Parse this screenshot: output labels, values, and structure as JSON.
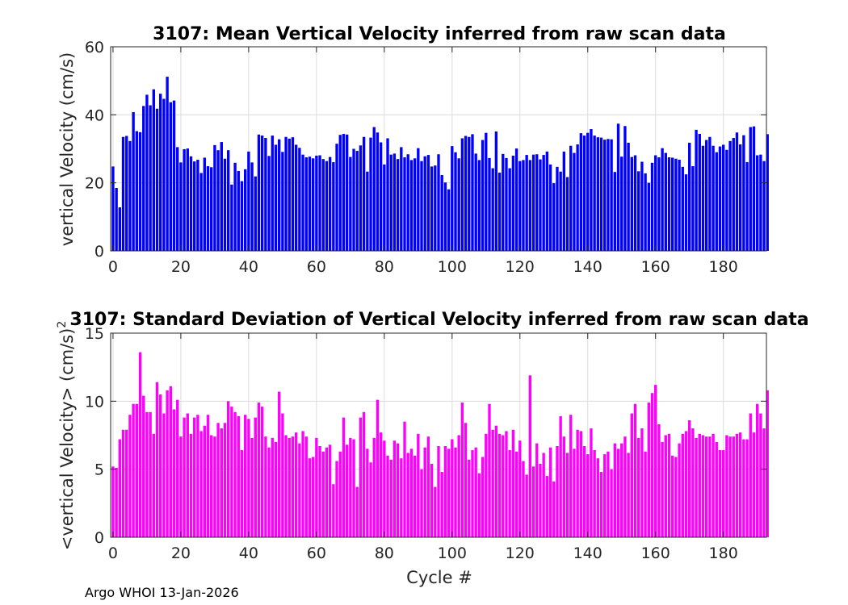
{
  "footer": "Argo WHOI 13-Jan-2026",
  "chart_data": [
    {
      "type": "bar",
      "title": "3107: Mean Vertical Velocity inferred from raw scan data",
      "xlabel": "",
      "ylabel": "vertical Velocity (cm/s)",
      "color": "#0000ff",
      "xlim": [
        -0.7,
        192.7
      ],
      "ylim": [
        0,
        60
      ],
      "xticks": [
        0,
        20,
        40,
        60,
        80,
        100,
        120,
        140,
        160,
        180
      ],
      "yticks": [
        0,
        20,
        40,
        60
      ],
      "grid": true,
      "x_start": 0,
      "values": [
        24.8,
        18.5,
        12.8,
        33.5,
        33.8,
        32.3,
        40.8,
        35.2,
        34.9,
        42.6,
        45.9,
        42.8,
        47.5,
        41.8,
        46.2,
        44.7,
        51.2,
        43.7,
        44.2,
        30.5,
        26.0,
        29.9,
        30.1,
        27.8,
        26.3,
        26.8,
        22.9,
        27.4,
        24.9,
        24.6,
        31.1,
        29.6,
        32.0,
        27.1,
        29.6,
        19.5,
        25.9,
        23.5,
        20.5,
        24.0,
        29.2,
        26.0,
        21.9,
        34.2,
        33.9,
        33.2,
        27.9,
        33.9,
        31.2,
        32.8,
        29.1,
        33.5,
        33.0,
        33.4,
        31.2,
        30.3,
        28.3,
        27.5,
        27.7,
        27.2,
        28.0,
        28.1,
        27.0,
        26.4,
        27.6,
        26.1,
        31.5,
        34.1,
        34.4,
        34.2,
        27.6,
        30.0,
        29.4,
        31.0,
        33.5,
        23.3,
        33.3,
        36.4,
        34.8,
        31.9,
        25.4,
        33.1,
        28.3,
        28.6,
        27.0,
        30.5,
        27.5,
        28.4,
        26.7,
        27.2,
        30.2,
        26.4,
        27.8,
        28.2,
        24.8,
        25.1,
        28.4,
        22.3,
        20.1,
        18.1,
        30.8,
        29.0,
        27.2,
        33.1,
        33.8,
        33.5,
        34.3,
        28.6,
        26.7,
        32.6,
        34.7,
        27.3,
        24.3,
        35.1,
        23.0,
        28.5,
        27.3,
        24.3,
        28.0,
        30.1,
        26.4,
        26.7,
        28.2,
        26.7,
        28.3,
        28.4,
        26.9,
        28.2,
        29.2,
        25.4,
        19.9,
        24.7,
        23.3,
        29.2,
        21.7,
        30.9,
        28.8,
        31.3,
        34.6,
        33.9,
        34.7,
        35.8,
        33.9,
        33.4,
        33.3,
        32.7,
        32.9,
        32.8,
        23.2,
        37.4,
        27.7,
        36.7,
        31.8,
        27.6,
        28.1,
        23.4,
        26.2,
        22.8,
        20.0,
        25.9,
        28.1,
        27.5,
        30.2,
        28.8,
        27.5,
        27.4,
        27.1,
        26.8,
        24.7,
        22.5,
        31.8,
        24.9,
        35.6,
        34.4,
        30.9,
        32.6,
        33.5,
        30.9,
        29.0,
        30.7,
        31.2,
        29.7,
        32.3,
        33.2,
        34.8,
        31.3,
        34.0,
        26.1,
        36.4,
        36.6,
        28.1,
        28.3,
        26.4,
        34.3
      ]
    },
    {
      "type": "bar",
      "title": "3107: Standard Deviation of Vertical Velocity inferred from raw scan data",
      "xlabel": "Cycle #",
      "ylabel": "<vertical Velocity> (cm/s)",
      "ylabel_superscript": "2",
      "color": "#ff00ff",
      "xlim": [
        -0.7,
        192.7
      ],
      "ylim": [
        0,
        15
      ],
      "xticks": [
        0,
        20,
        40,
        60,
        80,
        100,
        120,
        140,
        160,
        180
      ],
      "yticks": [
        0,
        5,
        10,
        15
      ],
      "grid": true,
      "x_start": 0,
      "values": [
        5.2,
        5.1,
        7.2,
        7.9,
        7.9,
        9.0,
        9.8,
        9.8,
        13.6,
        10.4,
        9.2,
        9.2,
        7.6,
        11.4,
        10.5,
        9.1,
        10.8,
        11.1,
        9.4,
        10.1,
        7.4,
        8.8,
        9.1,
        7.6,
        8.8,
        9.0,
        7.8,
        8.2,
        9.0,
        7.5,
        7.4,
        8.4,
        8.0,
        8.4,
        10.0,
        9.6,
        9.2,
        8.9,
        6.4,
        9.0,
        8.7,
        7.3,
        8.8,
        9.9,
        9.6,
        7.4,
        6.6,
        7.3,
        7.0,
        10.7,
        9.1,
        7.5,
        7.3,
        7.4,
        7.7,
        6.9,
        7.8,
        7.4,
        5.8,
        5.9,
        7.3,
        6.7,
        6.3,
        6.6,
        6.8,
        3.9,
        5.6,
        6.3,
        8.8,
        6.8,
        7.3,
        7.2,
        3.7,
        8.8,
        9.2,
        6.5,
        5.5,
        7.3,
        10.1,
        7.7,
        7.1,
        6.0,
        5.7,
        7.1,
        6.9,
        5.8,
        8.5,
        6.2,
        6.5,
        6.0,
        7.6,
        5.0,
        6.6,
        7.4,
        5.4,
        3.7,
        6.7,
        4.8,
        6.7,
        6.5,
        7.2,
        6.6,
        7.5,
        9.9,
        8.4,
        5.7,
        6.4,
        6.6,
        4.7,
        5.9,
        7.6,
        9.8,
        7.9,
        8.2,
        7.6,
        7.5,
        7.8,
        6.4,
        7.9,
        6.3,
        7.1,
        5.6,
        4.6,
        11.9,
        5.2,
        6.9,
        5.4,
        6.2,
        4.5,
        6.6,
        4.1,
        6.7,
        8.9,
        7.4,
        6.2,
        9.0,
        6.5,
        7.9,
        7.8,
        6.7,
        6.1,
        8.0,
        6.4,
        5.8,
        4.8,
        6.1,
        6.3,
        5.0,
        6.9,
        6.5,
        6.9,
        7.4,
        6.2,
        9.1,
        9.8,
        7.3,
        8.0,
        6.3,
        9.9,
        10.6,
        11.2,
        8.3,
        7.0,
        7.5,
        7.6,
        6.0,
        5.9,
        6.9,
        7.6,
        7.8,
        8.6,
        8.0,
        7.3,
        7.6,
        7.5,
        7.4,
        7.4,
        7.6,
        7.0,
        6.4,
        6.4,
        7.5,
        7.4,
        7.4,
        7.6,
        7.7,
        7.2,
        7.2,
        9.1,
        7.7,
        9.8,
        9.1,
        8.0,
        10.8
      ]
    }
  ]
}
